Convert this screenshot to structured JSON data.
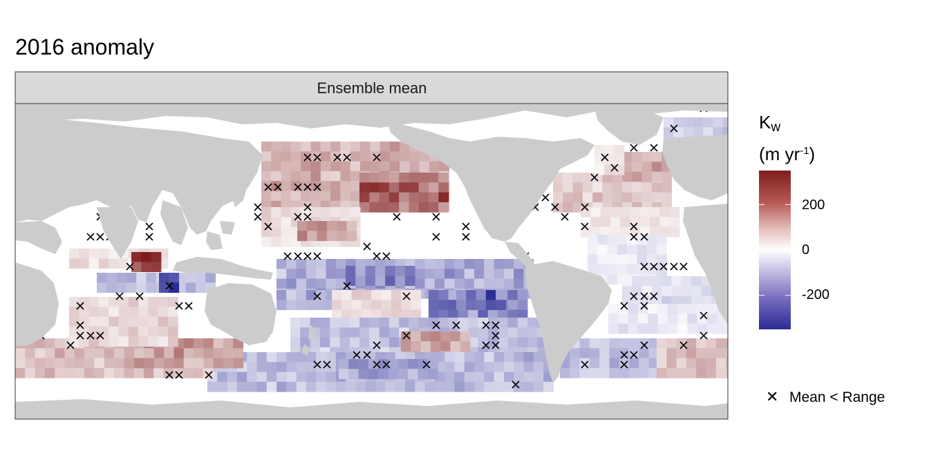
{
  "title": "2016 anomaly",
  "panel": {
    "strip_label": "Ensemble mean"
  },
  "legend": {
    "variable": "K",
    "subscript": "w",
    "unit_prefix": "(m yr",
    "unit_exp": "-1",
    "unit_suffix": ")",
    "ticks": [
      {
        "value": 200,
        "label": "200"
      },
      {
        "value": 0,
        "label": "0"
      },
      {
        "value": -200,
        "label": "-200"
      }
    ],
    "range": [
      -350,
      350
    ],
    "colors": {
      "low": "#2c2c96",
      "mid": "#ffffff",
      "high": "#7f1d1d"
    },
    "marker_label": "Mean < Range"
  },
  "colors": {
    "land": "#cccccc",
    "ocean_bg": "#ffffff",
    "strip": "#d9d9d9",
    "frame": "#333333"
  }
}
